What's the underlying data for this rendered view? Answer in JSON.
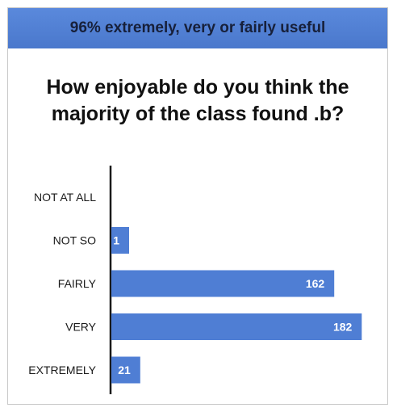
{
  "header": {
    "text": "96% extremely, very or fairly useful",
    "color": "#4f7fd4"
  },
  "chart_data": {
    "type": "bar",
    "orientation": "horizontal",
    "title": "How enjoyable do you think the majority of the class found .b?",
    "categories": [
      "NOT AT ALL",
      "NOT SO",
      "FAIRLY",
      "VERY",
      "EXTREMELY"
    ],
    "values": [
      0,
      1,
      162,
      182,
      21
    ],
    "xlabel": "",
    "ylabel": "",
    "grid": false,
    "bar_color": "#4f7ed4",
    "data_label_color": "#ffffff"
  }
}
